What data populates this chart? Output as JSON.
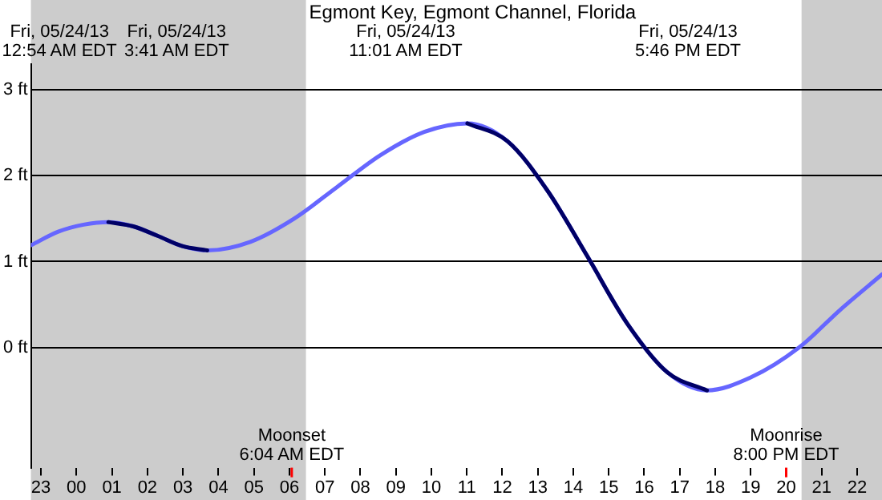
{
  "chart_data": {
    "type": "line",
    "title": "Egmont Key, Egmont Channel, Florida",
    "x": [
      "--05-23T22:43",
      "--05-23T23:30",
      "--05-24T00:12",
      "--05-24T00:54",
      "--05-24T01:36",
      "--05-24T02:17",
      "--05-24T02:59",
      "--05-24T03:41",
      "--05-24T04:54",
      "--05-24T06:08",
      "--05-24T07:21",
      "--05-24T08:34",
      "--05-24T09:48",
      "--05-24T11:01",
      "--05-24T12:09",
      "--05-24T13:16",
      "--05-24T14:24",
      "--05-24T15:31",
      "--05-24T16:39",
      "--05-24T17:46",
      "--05-24T19:00",
      "--05-24T20:22",
      "--05-24T21:30",
      "--05-24T22:42"
    ],
    "series": [
      {
        "color": "#000066",
        "x": [
          "--05-24T00:54",
          "--05-24T01:36",
          "--05-24T02:17",
          "--05-24T02:59",
          "--05-24T03:41",
          "--05-24T07:21",
          "--05-24T11:01",
          "--05-24T12:09",
          "--05-24T13:16",
          "--05-24T14:24",
          "--05-24T15:31",
          "--05-24T16:39",
          "--05-24T17:46"
        ],
        "values": [
          1.46,
          1.41,
          1.3,
          1.18,
          1.13,
          null,
          2.61,
          2.4,
          1.83,
          1.06,
          0.28,
          -0.29,
          -0.5
        ]
      },
      {
        "color": "#6666ff",
        "values": [
          1.19,
          1.35,
          1.43,
          1.46,
          1.41,
          1.3,
          1.18,
          1.13,
          1.23,
          1.5,
          1.87,
          2.24,
          2.51,
          2.61,
          2.4,
          1.83,
          1.06,
          0.28,
          -0.29,
          -0.5,
          -0.35,
          0.0,
          0.43,
          0.85
        ]
      }
    ],
    "xlim": [
      "--05-23T22:43",
      "--05-24T22:42"
    ],
    "xticks": [
      {
        "value": "--05-23T23:00",
        "label": "23"
      },
      {
        "value": "--05-24T00:00",
        "label": "00"
      },
      {
        "value": "--05-24T01:00",
        "label": "01"
      },
      {
        "value": "--05-24T02:00",
        "label": "02"
      },
      {
        "value": "--05-24T03:00",
        "label": "03"
      },
      {
        "value": "--05-24T04:00",
        "label": "04"
      },
      {
        "value": "--05-24T05:00",
        "label": "05"
      },
      {
        "value": "--05-24T06:00",
        "label": "06"
      },
      {
        "value": "--05-24T07:00",
        "label": "07"
      },
      {
        "value": "--05-24T08:00",
        "label": "08"
      },
      {
        "value": "--05-24T09:00",
        "label": "09"
      },
      {
        "value": "--05-24T10:00",
        "label": "10"
      },
      {
        "value": "--05-24T11:00",
        "label": "11"
      },
      {
        "value": "--05-24T12:00",
        "label": "12"
      },
      {
        "value": "--05-24T13:00",
        "label": "13"
      },
      {
        "value": "--05-24T14:00",
        "label": "14"
      },
      {
        "value": "--05-24T15:00",
        "label": "15"
      },
      {
        "value": "--05-24T16:00",
        "label": "16"
      },
      {
        "value": "--05-24T17:00",
        "label": "17"
      },
      {
        "value": "--05-24T18:00",
        "label": "18"
      },
      {
        "value": "--05-24T19:00",
        "label": "19"
      },
      {
        "value": "--05-24T20:00",
        "label": "20"
      },
      {
        "value": "--05-24T21:00",
        "label": "21"
      },
      {
        "value": "--05-24T22:00",
        "label": "22"
      }
    ],
    "ylim": [
      -1.4,
      3.3
    ],
    "yticks": [
      {
        "value": 0,
        "label": "0 ft"
      },
      {
        "value": 1,
        "label": "1 ft"
      },
      {
        "value": 2,
        "label": "2 ft"
      },
      {
        "value": 3,
        "label": "3 ft"
      }
    ],
    "grid": "y",
    "legend": false,
    "marker": "none",
    "line_style": "solid",
    "bands": [
      {
        "axis": "x",
        "from": "--05-23T22:43",
        "to": "--05-24T06:28",
        "color": "#cccccc"
      },
      {
        "axis": "x",
        "from": "--05-24T20:26",
        "to": "--05-24T22:42",
        "color": "#cccccc"
      }
    ],
    "ref_lines": [
      {
        "axis": "x",
        "value": "--05-24T06:04",
        "label": "Moonset\n6:04 AM EDT",
        "color": "#ff0000"
      },
      {
        "axis": "x",
        "value": "--05-24T20:00",
        "label": "Moonrise\n8:00 PM EDT",
        "color": "#ff0000"
      }
    ],
    "annotations": [
      "Fri, 05/24/13\n12:54 AM EDT",
      "Fri, 05/24/13\n3:41 AM EDT",
      "Fri, 05/24/13\n11:01 AM EDT",
      "Fri, 05/24/13\n5:46 PM EDT"
    ]
  }
}
